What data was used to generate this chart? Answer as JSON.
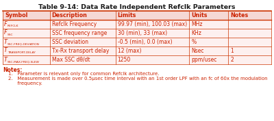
{
  "title": "Table 9-14: Data Rate Independent Refclk Parameters",
  "header": [
    "Symbol",
    "Description",
    "Limits",
    "Units",
    "Notes"
  ],
  "symbols_main": [
    "F",
    "F",
    "T",
    "T",
    "T"
  ],
  "symbols_sub": [
    "REFCLK",
    "SSC",
    "SSC-FREQ-DEVIATION",
    "TRANSPORT-DELAY",
    "SSC-MAX-FREQ-SLEW"
  ],
  "descriptions": [
    "Refclk Frequency",
    "SSC frequency range",
    "SSC deviation",
    "Tx-Rx transport delay",
    "Max SSC dθ/dt"
  ],
  "limits": [
    "99.97 (min), 100.03 (max)",
    "30 (min), 33 (max)",
    "-0.5 (min), 0.0 (max)",
    "12 (max)",
    "1250"
  ],
  "units": [
    "MHz",
    "KHz",
    "%",
    "Nsec",
    "ppm/usec"
  ],
  "notes_col": [
    "",
    "",
    "",
    "1",
    "2"
  ],
  "note1": "1.   Parameter is relevant only for common Refclk architecture.",
  "note2": "2.   Measurement is made over 0.5μsec time interval with an 1st order LPF with an fᴄ of 60x the modulation",
  "note2b": "      frequency.",
  "red": "#cc2200",
  "light_bg": "#fdf0ef",
  "white": "#ffffff",
  "line_red": "#cc3300",
  "title_color": "#1a1a1a"
}
